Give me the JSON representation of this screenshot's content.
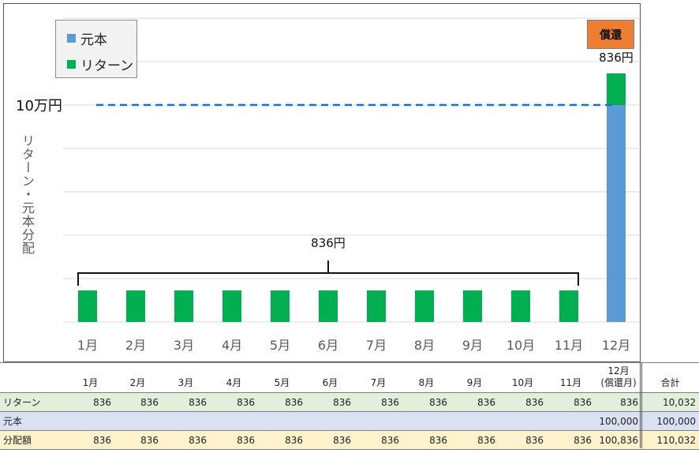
{
  "legend": {
    "principal": "元本",
    "return": "リターン"
  },
  "badge": "償還",
  "ylabel": "リターン・元本分配",
  "ref_label": "10万円",
  "brace_label": "836円",
  "top_label": "836円",
  "colors": {
    "return": "#00b050",
    "principal": "#5b9bd5",
    "badge": "#ed7d31",
    "refline": "#1f6fbf"
  },
  "chart_data": {
    "type": "bar",
    "stacked": true,
    "categories": [
      "1月",
      "2月",
      "3月",
      "4月",
      "5月",
      "6月",
      "7月",
      "8月",
      "9月",
      "10月",
      "11月",
      "12月"
    ],
    "series": [
      {
        "name": "リターン",
        "values": [
          836,
          836,
          836,
          836,
          836,
          836,
          836,
          836,
          836,
          836,
          836,
          836
        ]
      },
      {
        "name": "元本",
        "values": [
          0,
          0,
          0,
          0,
          0,
          0,
          0,
          0,
          0,
          0,
          0,
          100000
        ]
      }
    ],
    "reference_line": 100000,
    "ylabel": "リターン・元本分配",
    "grid": true,
    "axis_scale": "broken"
  },
  "table": {
    "headers": [
      "1月",
      "2月",
      "3月",
      "4月",
      "5月",
      "6月",
      "7月",
      "8月",
      "9月",
      "10月",
      "11月",
      "12月\n(償還月)",
      "合計"
    ],
    "rows": [
      {
        "label": "リターン",
        "values": [
          "836",
          "836",
          "836",
          "836",
          "836",
          "836",
          "836",
          "836",
          "836",
          "836",
          "836",
          "836",
          "10,032"
        ]
      },
      {
        "label": "元本",
        "values": [
          "",
          "",
          "",
          "",
          "",
          "",
          "",
          "",
          "",
          "",
          "",
          "100,000",
          "100,000"
        ]
      },
      {
        "label": "分配額",
        "values": [
          "836",
          "836",
          "836",
          "836",
          "836",
          "836",
          "836",
          "836",
          "836",
          "836",
          "836",
          "100,836",
          "110,032"
        ]
      }
    ]
  }
}
